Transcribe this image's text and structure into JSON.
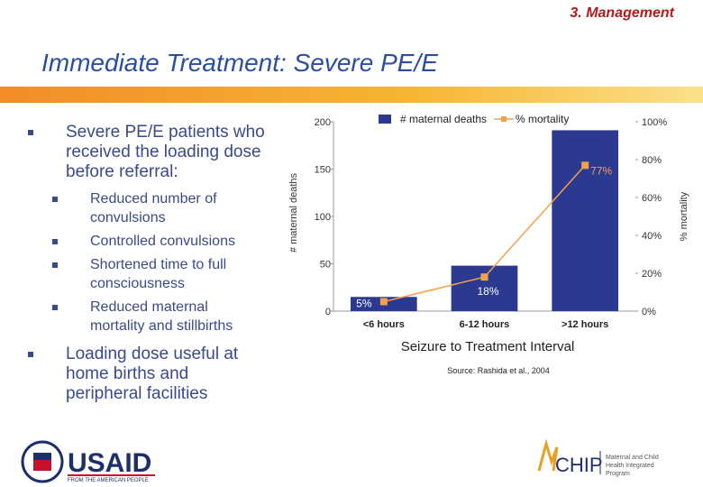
{
  "header": {
    "section": "3. Management",
    "title": "Immediate Treatment: Severe PE/E"
  },
  "bullets": [
    {
      "text": "Severe PE/E patients who received the loading dose before referral:",
      "sub": [
        "Reduced number of convulsions",
        "Controlled convulsions",
        "Shortened time to full consciousness",
        "Reduced maternal mortality and stillbirths"
      ]
    },
    {
      "text": "Loading dose useful at home births and peripheral facilities"
    }
  ],
  "chart_data": {
    "type": "bar",
    "y_label": "# maternal deaths",
    "y2_label": "% mortality",
    "caption": "Seizure to Treatment Interval",
    "source": "Source: Rashida et al., 2004",
    "categories": [
      "<6 hours",
      "6-12 hours",
      ">12 hours"
    ],
    "series": [
      {
        "name": "# maternal deaths",
        "type": "bar",
        "color": "#2b3990",
        "values": [
          15,
          48,
          191
        ]
      },
      {
        "name": "% mortality",
        "type": "line",
        "axis": "y2",
        "color": "#f5a04a",
        "values": [
          5,
          18,
          77
        ],
        "value_labels": [
          "5%",
          "18%",
          "77%"
        ]
      }
    ],
    "ylim": [
      0,
      200
    ],
    "yticks": [
      0,
      50,
      100,
      150,
      200
    ],
    "y2lim": [
      0,
      100
    ],
    "y2ticks": [
      {
        "value": 0,
        "label": "0%"
      },
      {
        "value": 20,
        "label": "20%"
      },
      {
        "value": 40,
        "label": "40%"
      },
      {
        "value": 60,
        "label": "60%"
      },
      {
        "value": 80,
        "label": "80%"
      },
      {
        "value": 100,
        "label": "100%"
      }
    ],
    "legend": "top",
    "grid": false
  },
  "logos": {
    "usaid": "USAID",
    "usaid_tagline": "FROM THE AMERICAN PEOPLE",
    "mchip": "CHIP",
    "mchip_tagline": "Maternal and Child Health Integrated Program"
  }
}
